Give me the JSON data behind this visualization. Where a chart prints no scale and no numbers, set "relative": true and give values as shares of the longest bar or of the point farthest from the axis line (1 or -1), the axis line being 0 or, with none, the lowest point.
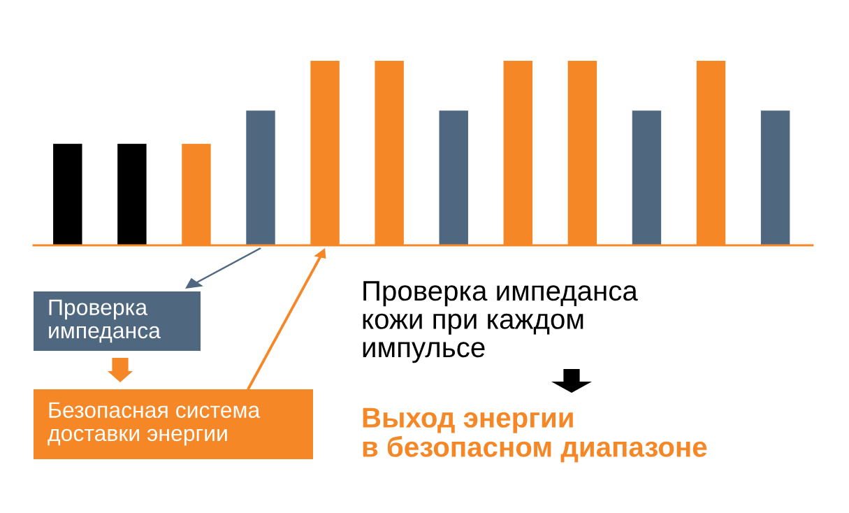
{
  "chart_data": {
    "type": "bar",
    "relative": true,
    "categories": [
      null,
      null,
      null,
      null,
      null,
      null,
      null,
      null,
      null,
      null,
      null,
      null
    ],
    "values": [
      0.55,
      0.55,
      0.55,
      0.73,
      1,
      1,
      0.73,
      1,
      1,
      0.73,
      1,
      0.73
    ],
    "colors": [
      "#000000",
      "#000000",
      "#f58726",
      "#4f6880",
      "#f58726",
      "#f58726",
      "#4f6880",
      "#f58726",
      "#f58726",
      "#4f6880",
      "#f58726",
      "#4f6880"
    ],
    "annotations": [
      "Проверка\nимпеданса",
      "Безопасная система\nдоставки энергии",
      "Проверка импеданса\nкожи при каждом\nимпульсе",
      "Выход энергии\nв безопасном диапазоне"
    ],
    "grid": false,
    "legend": false
  }
}
